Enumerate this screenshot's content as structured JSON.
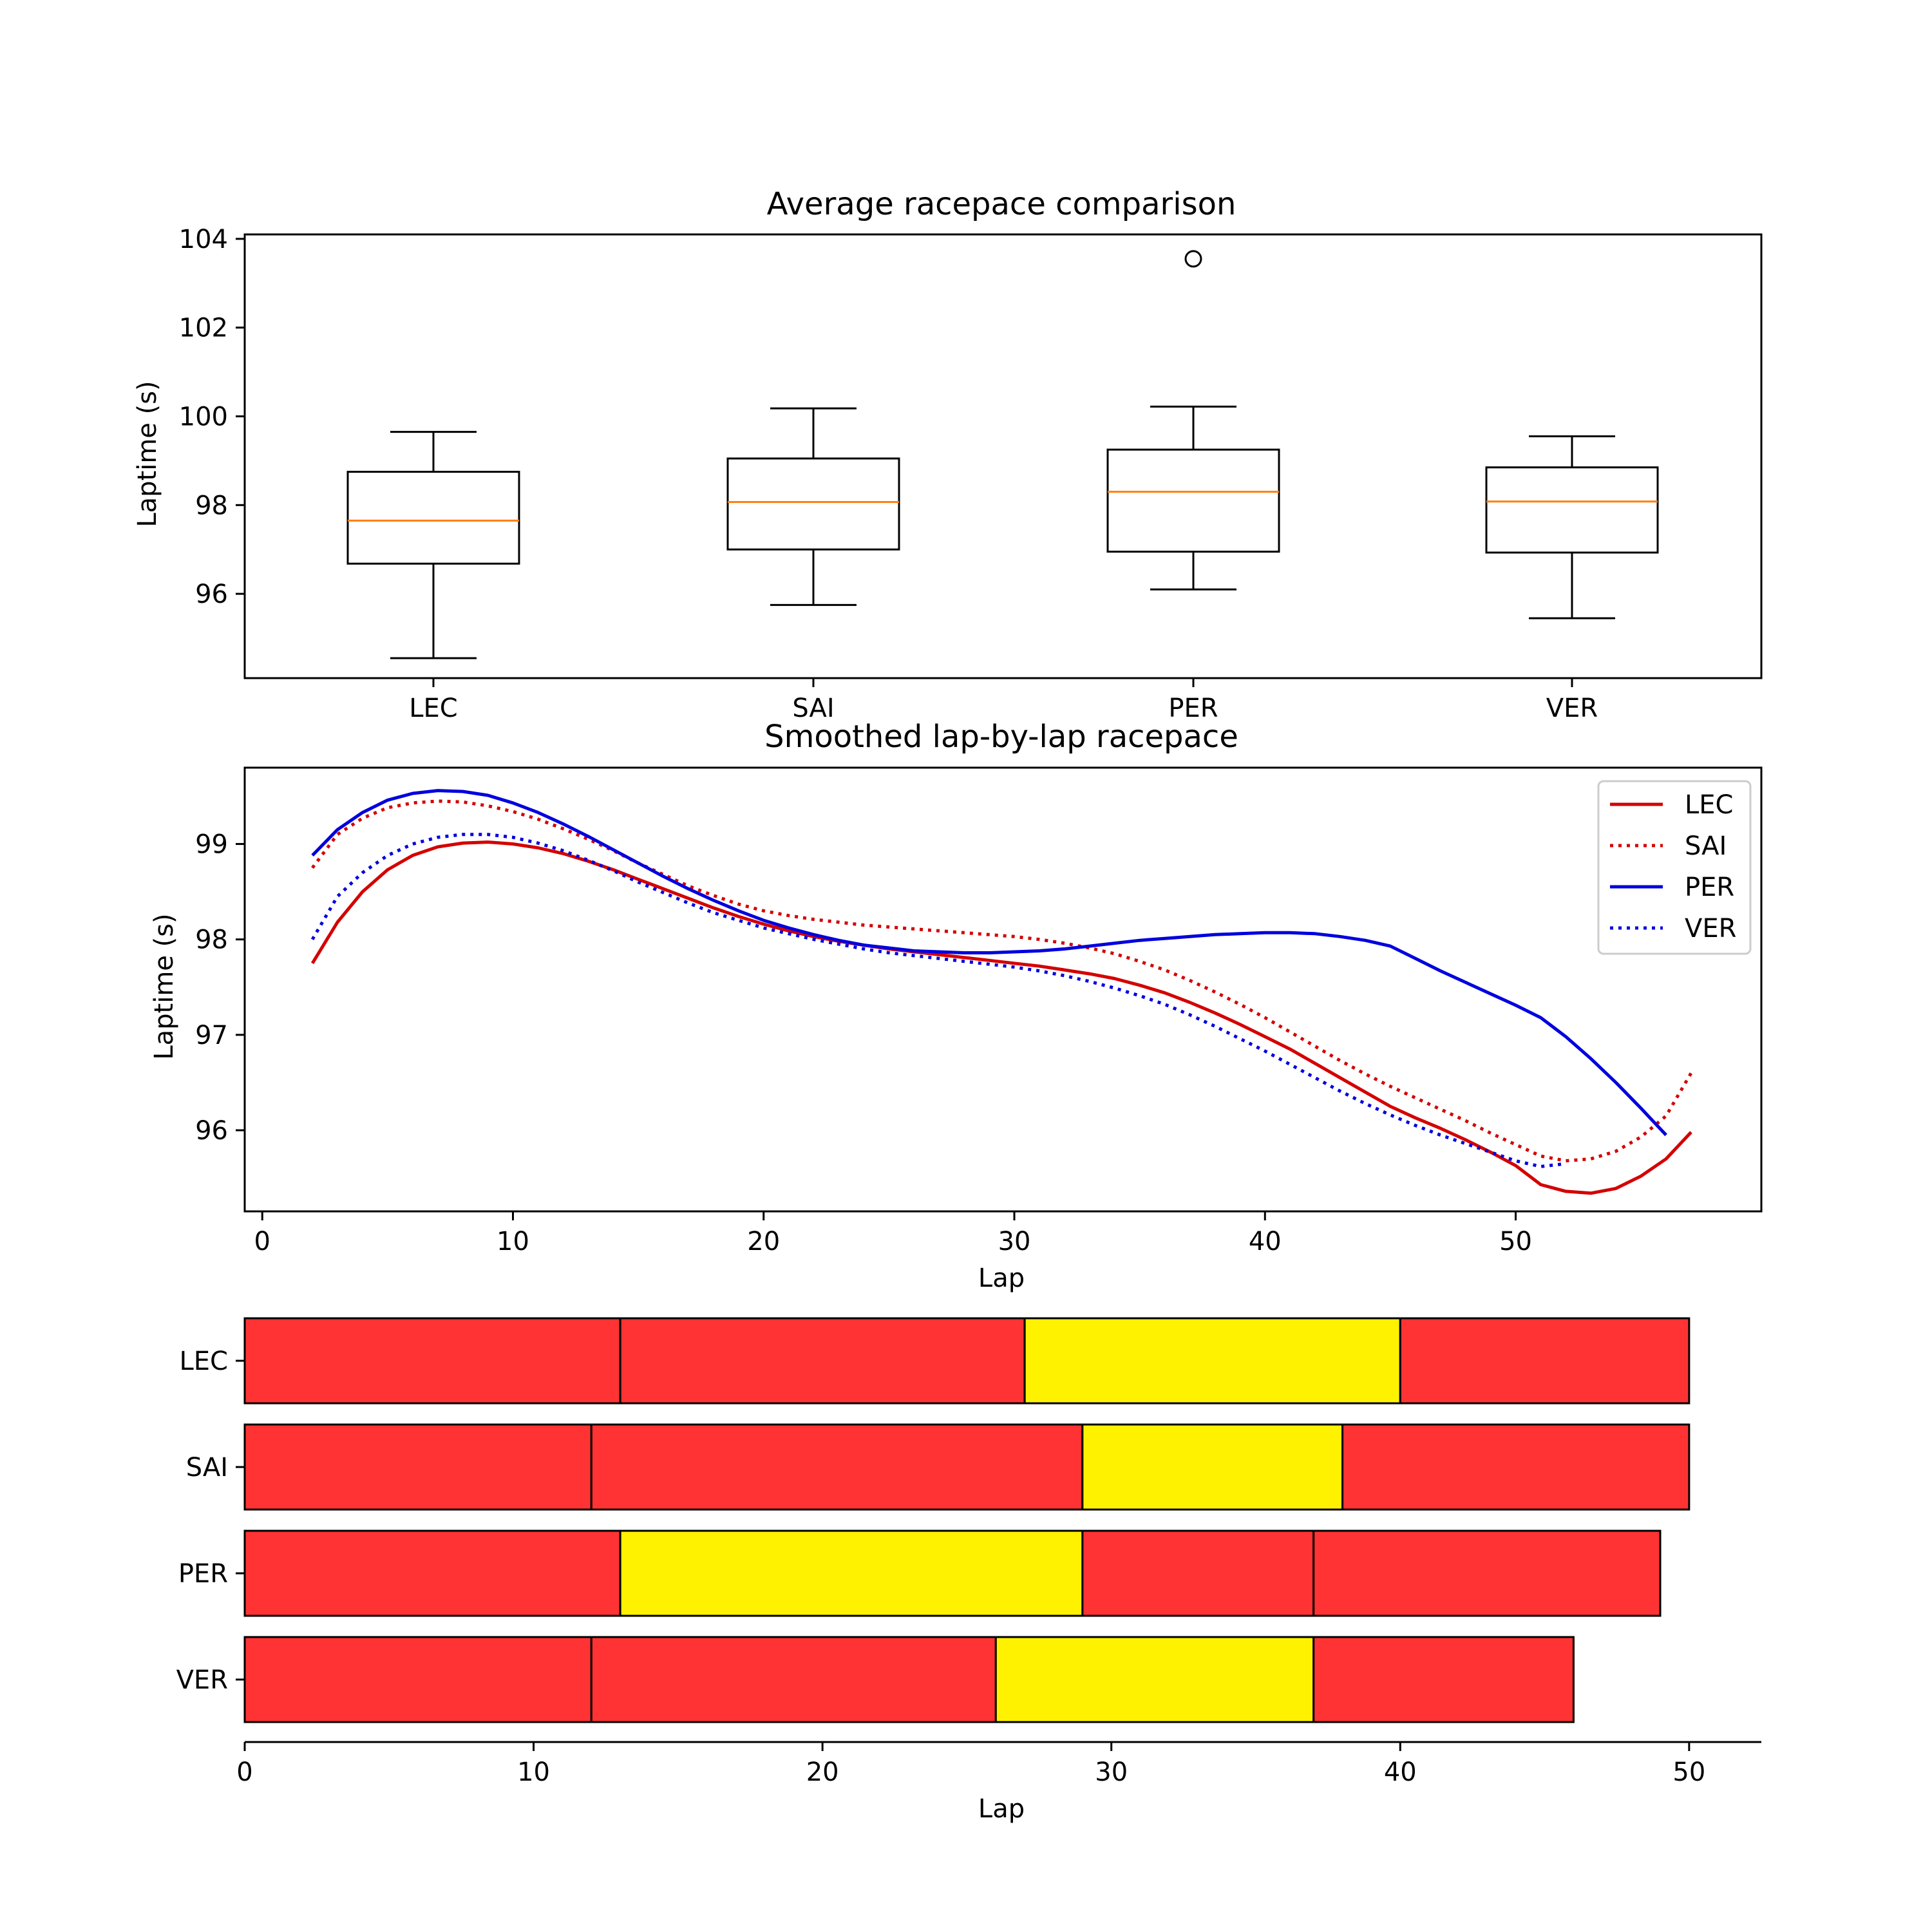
{
  "chart_data": [
    {
      "type": "box",
      "title": "Average racepace comparison",
      "xlabel": "",
      "ylabel": "Laptime (s)",
      "ylim": [
        94.1,
        104.1
      ],
      "yticks": [
        "96",
        "98",
        "100",
        "102",
        "104"
      ],
      "categories": [
        "LEC",
        "SAI",
        "PER",
        "VER"
      ],
      "boxes": [
        {
          "name": "LEC",
          "whisker_low": 94.55,
          "q1": 96.68,
          "median": 97.65,
          "q3": 98.75,
          "whisker_high": 99.65,
          "outliers": []
        },
        {
          "name": "SAI",
          "whisker_low": 95.75,
          "q1": 97.0,
          "median": 98.07,
          "q3": 99.05,
          "whisker_high": 100.18,
          "outliers": []
        },
        {
          "name": "PER",
          "whisker_low": 96.1,
          "q1": 96.95,
          "median": 98.3,
          "q3": 99.25,
          "whisker_high": 100.22,
          "outliers": [
            103.55
          ]
        },
        {
          "name": "VER",
          "whisker_low": 95.45,
          "q1": 96.93,
          "median": 98.08,
          "q3": 98.85,
          "whisker_high": 99.55,
          "outliers": []
        }
      ],
      "colors": {
        "box": "#000000",
        "median": "#ff7f0e"
      }
    },
    {
      "type": "line",
      "title": "Smoothed lap-by-lap racepace",
      "xlabel": "Lap",
      "ylabel": "Laptime (s)",
      "xlim": [
        -0.7,
        59.8
      ],
      "ylim": [
        95.15,
        99.8
      ],
      "xticks": [
        "0",
        "10",
        "20",
        "30",
        "40",
        "50"
      ],
      "yticks": [
        "96",
        "97",
        "98",
        "99"
      ],
      "legend": "top-right",
      "series": [
        {
          "name": "LEC",
          "color": "#d40000",
          "style": "solid",
          "points": [
            [
              2,
              97.75
            ],
            [
              3,
              98.18
            ],
            [
              4,
              98.5
            ],
            [
              5,
              98.73
            ],
            [
              6,
              98.88
            ],
            [
              7,
              98.97
            ],
            [
              8,
              99.01
            ],
            [
              9,
              99.02
            ],
            [
              10,
              99.0
            ],
            [
              11,
              98.96
            ],
            [
              12,
              98.9
            ],
            [
              13,
              98.82
            ],
            [
              14,
              98.73
            ],
            [
              15,
              98.63
            ],
            [
              16,
              98.53
            ],
            [
              17,
              98.43
            ],
            [
              18,
              98.33
            ],
            [
              19,
              98.24
            ],
            [
              20,
              98.16
            ],
            [
              21,
              98.09
            ],
            [
              22,
              98.03
            ],
            [
              23,
              97.98
            ],
            [
              24,
              97.94
            ],
            [
              25,
              97.9
            ],
            [
              26,
              97.87
            ],
            [
              27,
              97.84
            ],
            [
              28,
              97.81
            ],
            [
              29,
              97.78
            ],
            [
              30,
              97.75
            ],
            [
              31,
              97.72
            ],
            [
              32,
              97.68
            ],
            [
              33,
              97.64
            ],
            [
              34,
              97.59
            ],
            [
              35,
              97.52
            ],
            [
              36,
              97.44
            ],
            [
              37,
              97.34
            ],
            [
              38,
              97.23
            ],
            [
              39,
              97.11
            ],
            [
              40,
              96.98
            ],
            [
              41,
              96.85
            ],
            [
              42,
              96.7
            ],
            [
              43,
              96.55
            ],
            [
              44,
              96.4
            ],
            [
              45,
              96.25
            ],
            [
              46,
              96.13
            ],
            [
              47,
              96.02
            ],
            [
              48,
              95.9
            ],
            [
              49,
              95.77
            ],
            [
              50,
              95.63
            ],
            [
              51,
              95.43
            ],
            [
              52,
              95.36
            ],
            [
              53,
              95.34
            ],
            [
              54,
              95.39
            ],
            [
              55,
              95.52
            ],
            [
              56,
              95.7
            ],
            [
              57,
              95.98
            ]
          ]
        },
        {
          "name": "SAI",
          "color": "#d40000",
          "style": "dotted",
          "points": [
            [
              2,
              98.75
            ],
            [
              3,
              99.1
            ],
            [
              4,
              99.27
            ],
            [
              5,
              99.38
            ],
            [
              6,
              99.43
            ],
            [
              7,
              99.45
            ],
            [
              8,
              99.44
            ],
            [
              9,
              99.4
            ],
            [
              10,
              99.34
            ],
            [
              11,
              99.26
            ],
            [
              12,
              99.16
            ],
            [
              13,
              99.05
            ],
            [
              14,
              98.93
            ],
            [
              15,
              98.8
            ],
            [
              16,
              98.68
            ],
            [
              17,
              98.56
            ],
            [
              18,
              98.46
            ],
            [
              19,
              98.37
            ],
            [
              20,
              98.3
            ],
            [
              21,
              98.25
            ],
            [
              22,
              98.21
            ],
            [
              23,
              98.18
            ],
            [
              24,
              98.15
            ],
            [
              25,
              98.13
            ],
            [
              26,
              98.11
            ],
            [
              27,
              98.09
            ],
            [
              28,
              98.07
            ],
            [
              29,
              98.05
            ],
            [
              30,
              98.03
            ],
            [
              31,
              98.0
            ],
            [
              32,
              97.96
            ],
            [
              33,
              97.91
            ],
            [
              34,
              97.85
            ],
            [
              35,
              97.77
            ],
            [
              36,
              97.68
            ],
            [
              37,
              97.57
            ],
            [
              38,
              97.45
            ],
            [
              39,
              97.32
            ],
            [
              40,
              97.18
            ],
            [
              41,
              97.03
            ],
            [
              42,
              96.88
            ],
            [
              43,
              96.73
            ],
            [
              44,
              96.59
            ],
            [
              45,
              96.46
            ],
            [
              46,
              96.34
            ],
            [
              47,
              96.22
            ],
            [
              48,
              96.1
            ],
            [
              49,
              95.97
            ],
            [
              50,
              95.85
            ],
            [
              51,
              95.73
            ],
            [
              52,
              95.68
            ],
            [
              53,
              95.7
            ],
            [
              54,
              95.78
            ],
            [
              55,
              95.93
            ],
            [
              56,
              96.15
            ],
            [
              57,
              96.6
            ]
          ]
        },
        {
          "name": "PER",
          "color": "#0000dd",
          "style": "solid",
          "points": [
            [
              2,
              98.88
            ],
            [
              3,
              99.15
            ],
            [
              4,
              99.33
            ],
            [
              5,
              99.46
            ],
            [
              6,
              99.53
            ],
            [
              7,
              99.56
            ],
            [
              8,
              99.55
            ],
            [
              9,
              99.51
            ],
            [
              10,
              99.43
            ],
            [
              11,
              99.33
            ],
            [
              12,
              99.21
            ],
            [
              13,
              99.08
            ],
            [
              14,
              98.94
            ],
            [
              15,
              98.8
            ],
            [
              16,
              98.66
            ],
            [
              17,
              98.53
            ],
            [
              18,
              98.41
            ],
            [
              19,
              98.3
            ],
            [
              20,
              98.2
            ],
            [
              21,
              98.12
            ],
            [
              22,
              98.05
            ],
            [
              23,
              97.99
            ],
            [
              24,
              97.94
            ],
            [
              25,
              97.91
            ],
            [
              26,
              97.88
            ],
            [
              27,
              97.87
            ],
            [
              28,
              97.86
            ],
            [
              29,
              97.86
            ],
            [
              30,
              97.87
            ],
            [
              31,
              97.88
            ],
            [
              32,
              97.9
            ],
            [
              33,
              97.93
            ],
            [
              34,
              97.96
            ],
            [
              35,
              97.99
            ],
            [
              36,
              98.01
            ],
            [
              37,
              98.03
            ],
            [
              38,
              98.05
            ],
            [
              39,
              98.06
            ],
            [
              40,
              98.07
            ],
            [
              41,
              98.07
            ],
            [
              42,
              98.06
            ],
            [
              43,
              98.03
            ],
            [
              44,
              97.99
            ],
            [
              45,
              97.93
            ],
            [
              46,
              97.8
            ],
            [
              47,
              97.67
            ],
            [
              48,
              97.55
            ],
            [
              49,
              97.43
            ],
            [
              50,
              97.31
            ],
            [
              51,
              97.18
            ],
            [
              52,
              96.98
            ],
            [
              53,
              96.75
            ],
            [
              54,
              96.5
            ],
            [
              55,
              96.23
            ],
            [
              56,
              95.95
            ]
          ]
        },
        {
          "name": "VER",
          "color": "#0000dd",
          "style": "dotted",
          "points": [
            [
              2,
              98.0
            ],
            [
              3,
              98.45
            ],
            [
              4,
              98.7
            ],
            [
              5,
              98.88
            ],
            [
              6,
              99.0
            ],
            [
              7,
              99.07
            ],
            [
              8,
              99.1
            ],
            [
              9,
              99.1
            ],
            [
              10,
              99.07
            ],
            [
              11,
              99.01
            ],
            [
              12,
              98.93
            ],
            [
              13,
              98.83
            ],
            [
              14,
              98.72
            ],
            [
              15,
              98.6
            ],
            [
              16,
              98.49
            ],
            [
              17,
              98.38
            ],
            [
              18,
              98.28
            ],
            [
              19,
              98.2
            ],
            [
              20,
              98.12
            ],
            [
              21,
              98.06
            ],
            [
              22,
              98.0
            ],
            [
              23,
              97.95
            ],
            [
              24,
              97.9
            ],
            [
              25,
              97.86
            ],
            [
              26,
              97.83
            ],
            [
              27,
              97.8
            ],
            [
              28,
              97.77
            ],
            [
              29,
              97.74
            ],
            [
              30,
              97.71
            ],
            [
              31,
              97.67
            ],
            [
              32,
              97.62
            ],
            [
              33,
              97.56
            ],
            [
              34,
              97.49
            ],
            [
              35,
              97.41
            ],
            [
              36,
              97.32
            ],
            [
              37,
              97.21
            ],
            [
              38,
              97.09
            ],
            [
              39,
              96.96
            ],
            [
              40,
              96.83
            ],
            [
              41,
              96.69
            ],
            [
              42,
              96.55
            ],
            [
              43,
              96.41
            ],
            [
              44,
              96.28
            ],
            [
              45,
              96.16
            ],
            [
              46,
              96.05
            ],
            [
              47,
              95.95
            ],
            [
              48,
              95.86
            ],
            [
              49,
              95.77
            ],
            [
              50,
              95.68
            ],
            [
              51,
              95.62
            ],
            [
              52,
              95.65
            ]
          ]
        }
      ]
    },
    {
      "type": "stacked-bar",
      "title": "",
      "xlabel": "Lap",
      "ylabel": "",
      "xlim": [
        0,
        52.5
      ],
      "xticks": [
        "0",
        "10",
        "20",
        "30",
        "40",
        "50"
      ],
      "categories": [
        "LEC",
        "SAI",
        "PER",
        "VER"
      ],
      "compound_colors": {
        "red": "#ff3333",
        "yellow": "#fff200"
      },
      "stints": [
        {
          "driver": "LEC",
          "segments": [
            {
              "start": 0,
              "end": 13,
              "color": "red"
            },
            {
              "start": 13,
              "end": 27,
              "color": "red"
            },
            {
              "start": 27,
              "end": 40,
              "color": "yellow"
            },
            {
              "start": 40,
              "end": 50,
              "color": "red"
            }
          ]
        },
        {
          "driver": "SAI",
          "segments": [
            {
              "start": 0,
              "end": 12,
              "color": "red"
            },
            {
              "start": 12,
              "end": 29,
              "color": "red"
            },
            {
              "start": 29,
              "end": 38,
              "color": "yellow"
            },
            {
              "start": 38,
              "end": 50,
              "color": "red"
            }
          ]
        },
        {
          "driver": "PER",
          "segments": [
            {
              "start": 0,
              "end": 13,
              "color": "red"
            },
            {
              "start": 13,
              "end": 29,
              "color": "yellow"
            },
            {
              "start": 29,
              "end": 37,
              "color": "red"
            },
            {
              "start": 37,
              "end": 49,
              "color": "red"
            }
          ]
        },
        {
          "driver": "VER",
          "segments": [
            {
              "start": 0,
              "end": 12,
              "color": "red"
            },
            {
              "start": 12,
              "end": 26,
              "color": "red"
            },
            {
              "start": 26,
              "end": 37,
              "color": "yellow"
            },
            {
              "start": 37,
              "end": 46,
              "color": "red"
            }
          ]
        }
      ]
    }
  ]
}
